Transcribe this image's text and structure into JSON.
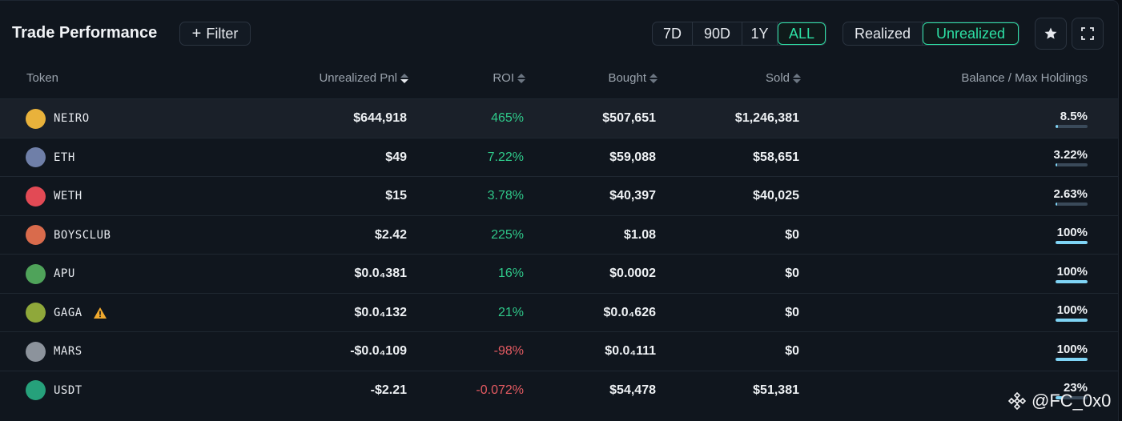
{
  "header": {
    "title": "Trade Performance",
    "filter_label": "Filter",
    "ranges": [
      "7D",
      "90D",
      "1Y",
      "ALL"
    ],
    "active_range": "ALL",
    "modes": [
      "Realized",
      "Unrealized"
    ],
    "active_mode": "Unrealized"
  },
  "columns": {
    "token": "Token",
    "pnl": "Unrealized Pnl",
    "roi": "ROI",
    "bought": "Bought",
    "sold": "Sold",
    "balance": "Balance / Max Holdings"
  },
  "rows": [
    {
      "token": "NEIRO",
      "icon": "neiro-icon",
      "icon_color": "#e9b23b",
      "pnl": "$644,918",
      "roi": "465%",
      "roi_sign": "pos",
      "bought": "$507,651",
      "sold": "$1,246,381",
      "balance": "8.5%",
      "balance_frac": 0.085
    },
    {
      "token": "ETH",
      "icon": "eth-icon",
      "icon_color": "#6f7fa8",
      "pnl": "$49",
      "roi": "7.22%",
      "roi_sign": "pos",
      "bought": "$59,088",
      "sold": "$58,651",
      "balance": "3.22%",
      "balance_frac": 0.0322
    },
    {
      "token": "WETH",
      "icon": "weth-icon",
      "icon_color": "#e24a55",
      "pnl": "$15",
      "roi": "3.78%",
      "roi_sign": "pos",
      "bought": "$40,397",
      "sold": "$40,025",
      "balance": "2.63%",
      "balance_frac": 0.0263
    },
    {
      "token": "BOYSCLUB",
      "icon": "boysclub-icon",
      "icon_color": "#d96b4c",
      "pnl": "$2.42",
      "roi": "225%",
      "roi_sign": "pos",
      "bought": "$1.08",
      "sold": "$0",
      "balance": "100%",
      "balance_frac": 1
    },
    {
      "token": "APU",
      "icon": "apu-icon",
      "icon_color": "#4fa35a",
      "pnl": "$0.0₄381",
      "roi": "16%",
      "roi_sign": "pos",
      "bought": "$0.0002",
      "sold": "$0",
      "balance": "100%",
      "balance_frac": 1
    },
    {
      "token": "GAGA",
      "icon": "gaga-icon",
      "icon_color": "#8fa83a",
      "warning": true,
      "pnl": "$0.0₄132",
      "roi": "21%",
      "roi_sign": "pos",
      "bought": "$0.0₄626",
      "sold": "$0",
      "balance": "100%",
      "balance_frac": 1
    },
    {
      "token": "MARS",
      "icon": "mars-icon",
      "icon_color": "#8c939c",
      "pnl": "-$0.0₄109",
      "roi": "-98%",
      "roi_sign": "neg",
      "bought": "$0.0₄111",
      "sold": "$0",
      "balance": "100%",
      "balance_frac": 1
    },
    {
      "token": "USDT",
      "icon": "usdt-icon",
      "icon_color": "#26a17b",
      "pnl": "-$2.21",
      "roi": "-0.072%",
      "roi_sign": "neg",
      "bought": "$54,478",
      "sold": "$51,381",
      "balance": "23%",
      "balance_frac": 0.23
    }
  ],
  "watermark": "@FC_0x0"
}
